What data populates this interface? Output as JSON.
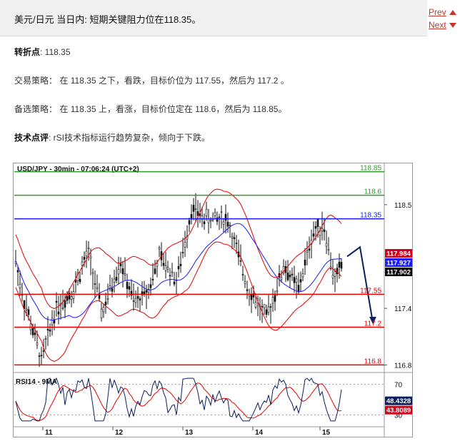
{
  "article": {
    "headline": "美元/日元 当日内: 短期关键阻力位在118.35。",
    "pivot_label": "转折点",
    "pivot_value": ": 118.35",
    "strategy_label": "交易策略：",
    "strategy_text": "在 118.35 之下，看跌，目标价位为 117.55，然后为 117.2 。",
    "alt_label": "备选策略：",
    "alt_text": "在 118.35 上，看涨，目标价位定在 118.6，然后为 118.85。",
    "comment_label": "技术点评",
    "comment_text": ": rSI技术指标运行趋势复杂，倾向于下跌。"
  },
  "pager": {
    "prev": "Prev",
    "next": "Next"
  },
  "colors": {
    "green": "#2e9a2e",
    "blue": "#1a1aff",
    "red": "#e60000",
    "navy": "#0b1f5c",
    "badge_red": "#d0021b"
  },
  "chart_data": {
    "type": "line",
    "title": "USD/JPY - 30min - 07:06:24 (UTC+2)",
    "ylim": [
      116.75,
      118.9
    ],
    "y_ticks": [
      118.5,
      117.4,
      116.8
    ],
    "y_tick_labels": [
      "118.5",
      "117.4",
      "116.8"
    ],
    "x_tick_labels": [
      "11",
      "12",
      "13",
      "14",
      "15"
    ],
    "levels": [
      {
        "label": "118.85",
        "value": 118.85,
        "color": "green"
      },
      {
        "label": "118.6",
        "value": 118.6,
        "color": "green"
      },
      {
        "label": "118.35",
        "value": 118.35,
        "color": "blue"
      },
      {
        "label": "117.55",
        "value": 117.55,
        "color": "red"
      },
      {
        "label": "117.2",
        "value": 117.2,
        "color": "red"
      },
      {
        "label": "116.8",
        "value": 116.8,
        "color": "red"
      }
    ],
    "badges": [
      {
        "label": "117.984",
        "value": 117.984,
        "color": "badge_red"
      },
      {
        "label": "117.927",
        "value": 117.927,
        "color": "blue"
      },
      {
        "label": "117.902",
        "value": 117.902,
        "color": "black"
      }
    ],
    "rsi": {
      "label": "RSI14 - 9MA",
      "ylim": [
        20,
        80
      ],
      "tick_labels": [
        "70",
        "30"
      ],
      "ticks": [
        70,
        30
      ],
      "badges": [
        {
          "label": "48.4328",
          "value": 48.4328,
          "color": "navy"
        },
        {
          "label": "43.8089",
          "value": 43.8089,
          "color": "badge_red"
        }
      ]
    }
  }
}
